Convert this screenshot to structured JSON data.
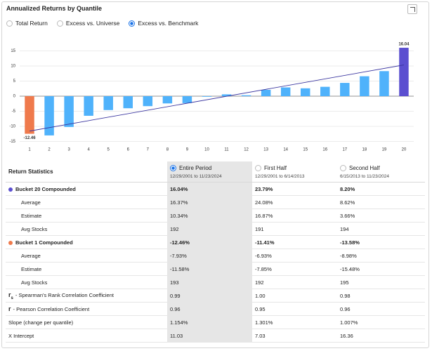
{
  "header": {
    "title": "Annualized Returns by Quantile"
  },
  "return_options": [
    {
      "label": "Total Return",
      "selected": false
    },
    {
      "label": "Excess vs. Universe",
      "selected": false
    },
    {
      "label": "Excess vs. Benchmark",
      "selected": true
    }
  ],
  "chart_data": {
    "type": "bar",
    "categories": [
      "1",
      "2",
      "3",
      "4",
      "5",
      "6",
      "7",
      "8",
      "9",
      "10",
      "11",
      "12",
      "13",
      "14",
      "15",
      "16",
      "17",
      "18",
      "19",
      "20"
    ],
    "values": [
      -12.46,
      -13.0,
      -10.2,
      -6.5,
      -4.6,
      -4.0,
      -3.3,
      -2.4,
      -2.3,
      -0.2,
      0.6,
      0.3,
      2.1,
      2.9,
      2.6,
      3.1,
      4.4,
      6.6,
      8.3,
      16.04
    ],
    "value_labels": [
      "-12.46",
      null,
      null,
      null,
      null,
      null,
      null,
      null,
      null,
      null,
      null,
      null,
      null,
      null,
      null,
      null,
      null,
      null,
      null,
      "16.04"
    ],
    "colors": [
      "#ef7a4c",
      "#4fb2fb",
      "#4fb2fb",
      "#4fb2fb",
      "#4fb2fb",
      "#4fb2fb",
      "#4fb2fb",
      "#4fb2fb",
      "#4fb2fb",
      "#4fb2fb",
      "#4fb2fb",
      "#4fb2fb",
      "#4fb2fb",
      "#4fb2fb",
      "#4fb2fb",
      "#4fb2fb",
      "#4fb2fb",
      "#4fb2fb",
      "#4fb2fb",
      "#5b4fd0"
    ],
    "trendline": {
      "x": [
        1,
        20
      ],
      "values": [
        -11.57,
        10.35
      ],
      "color": "#3b36a0"
    },
    "ylim": [
      -15,
      18
    ],
    "yticks": [
      -15,
      -10,
      -5,
      0,
      5,
      10,
      15
    ],
    "grid": true
  },
  "table": {
    "header": {
      "label": "Return Statistics",
      "periods": [
        {
          "name": "Entire Period",
          "range": "12/29/2001 to 11/23/2024",
          "selected": true
        },
        {
          "name": "First Half",
          "range": "12/29/2001 to 6/14/2013",
          "selected": false
        },
        {
          "name": "Second Half",
          "range": "6/15/2013 to 11/23/2024",
          "selected": false
        }
      ]
    },
    "rows": [
      {
        "label": "Bucket 20 Compounded",
        "bold": true,
        "marker": "#5b4fd0",
        "cells": [
          "16.04%",
          "23.79%",
          "8.20%"
        ]
      },
      {
        "label": "Average",
        "indent": true,
        "cells": [
          "16.37%",
          "24.08%",
          "8.62%"
        ]
      },
      {
        "label": "Estimate",
        "indent": true,
        "cells": [
          "10.34%",
          "16.87%",
          "3.66%"
        ]
      },
      {
        "label": "Avg Stocks",
        "indent": true,
        "cells": [
          "192",
          "191",
          "194"
        ]
      },
      {
        "label": "Bucket 1 Compounded",
        "bold": true,
        "marker": "#ef7a4c",
        "cells": [
          "-12.46%",
          "-11.41%",
          "-13.58%"
        ]
      },
      {
        "label": "Average",
        "indent": true,
        "cells": [
          "-7.93%",
          "-6.93%",
          "-8.98%"
        ]
      },
      {
        "label": "Estimate",
        "indent": true,
        "cells": [
          "-11.58%",
          "-7.85%",
          "-15.48%"
        ]
      },
      {
        "label": "Avg Stocks",
        "indent": true,
        "cells": [
          "193",
          "192",
          "195"
        ]
      },
      {
        "symbol": "r",
        "subscript": "s",
        "label": "- Spearman's Rank Correlation Coefficient",
        "cells": [
          "0.99",
          "1.00",
          "0.98"
        ]
      },
      {
        "symbol": "r",
        "label": "- Pearson Correlation Coefficient",
        "cells": [
          "0.96",
          "0.95",
          "0.96"
        ]
      },
      {
        "label": "Slope (change per quantile)",
        "cells": [
          "1.154%",
          "1.301%",
          "1.007%"
        ]
      },
      {
        "label": "X Intercept",
        "cells": [
          "11.03",
          "7.03",
          "16.36"
        ]
      }
    ]
  }
}
